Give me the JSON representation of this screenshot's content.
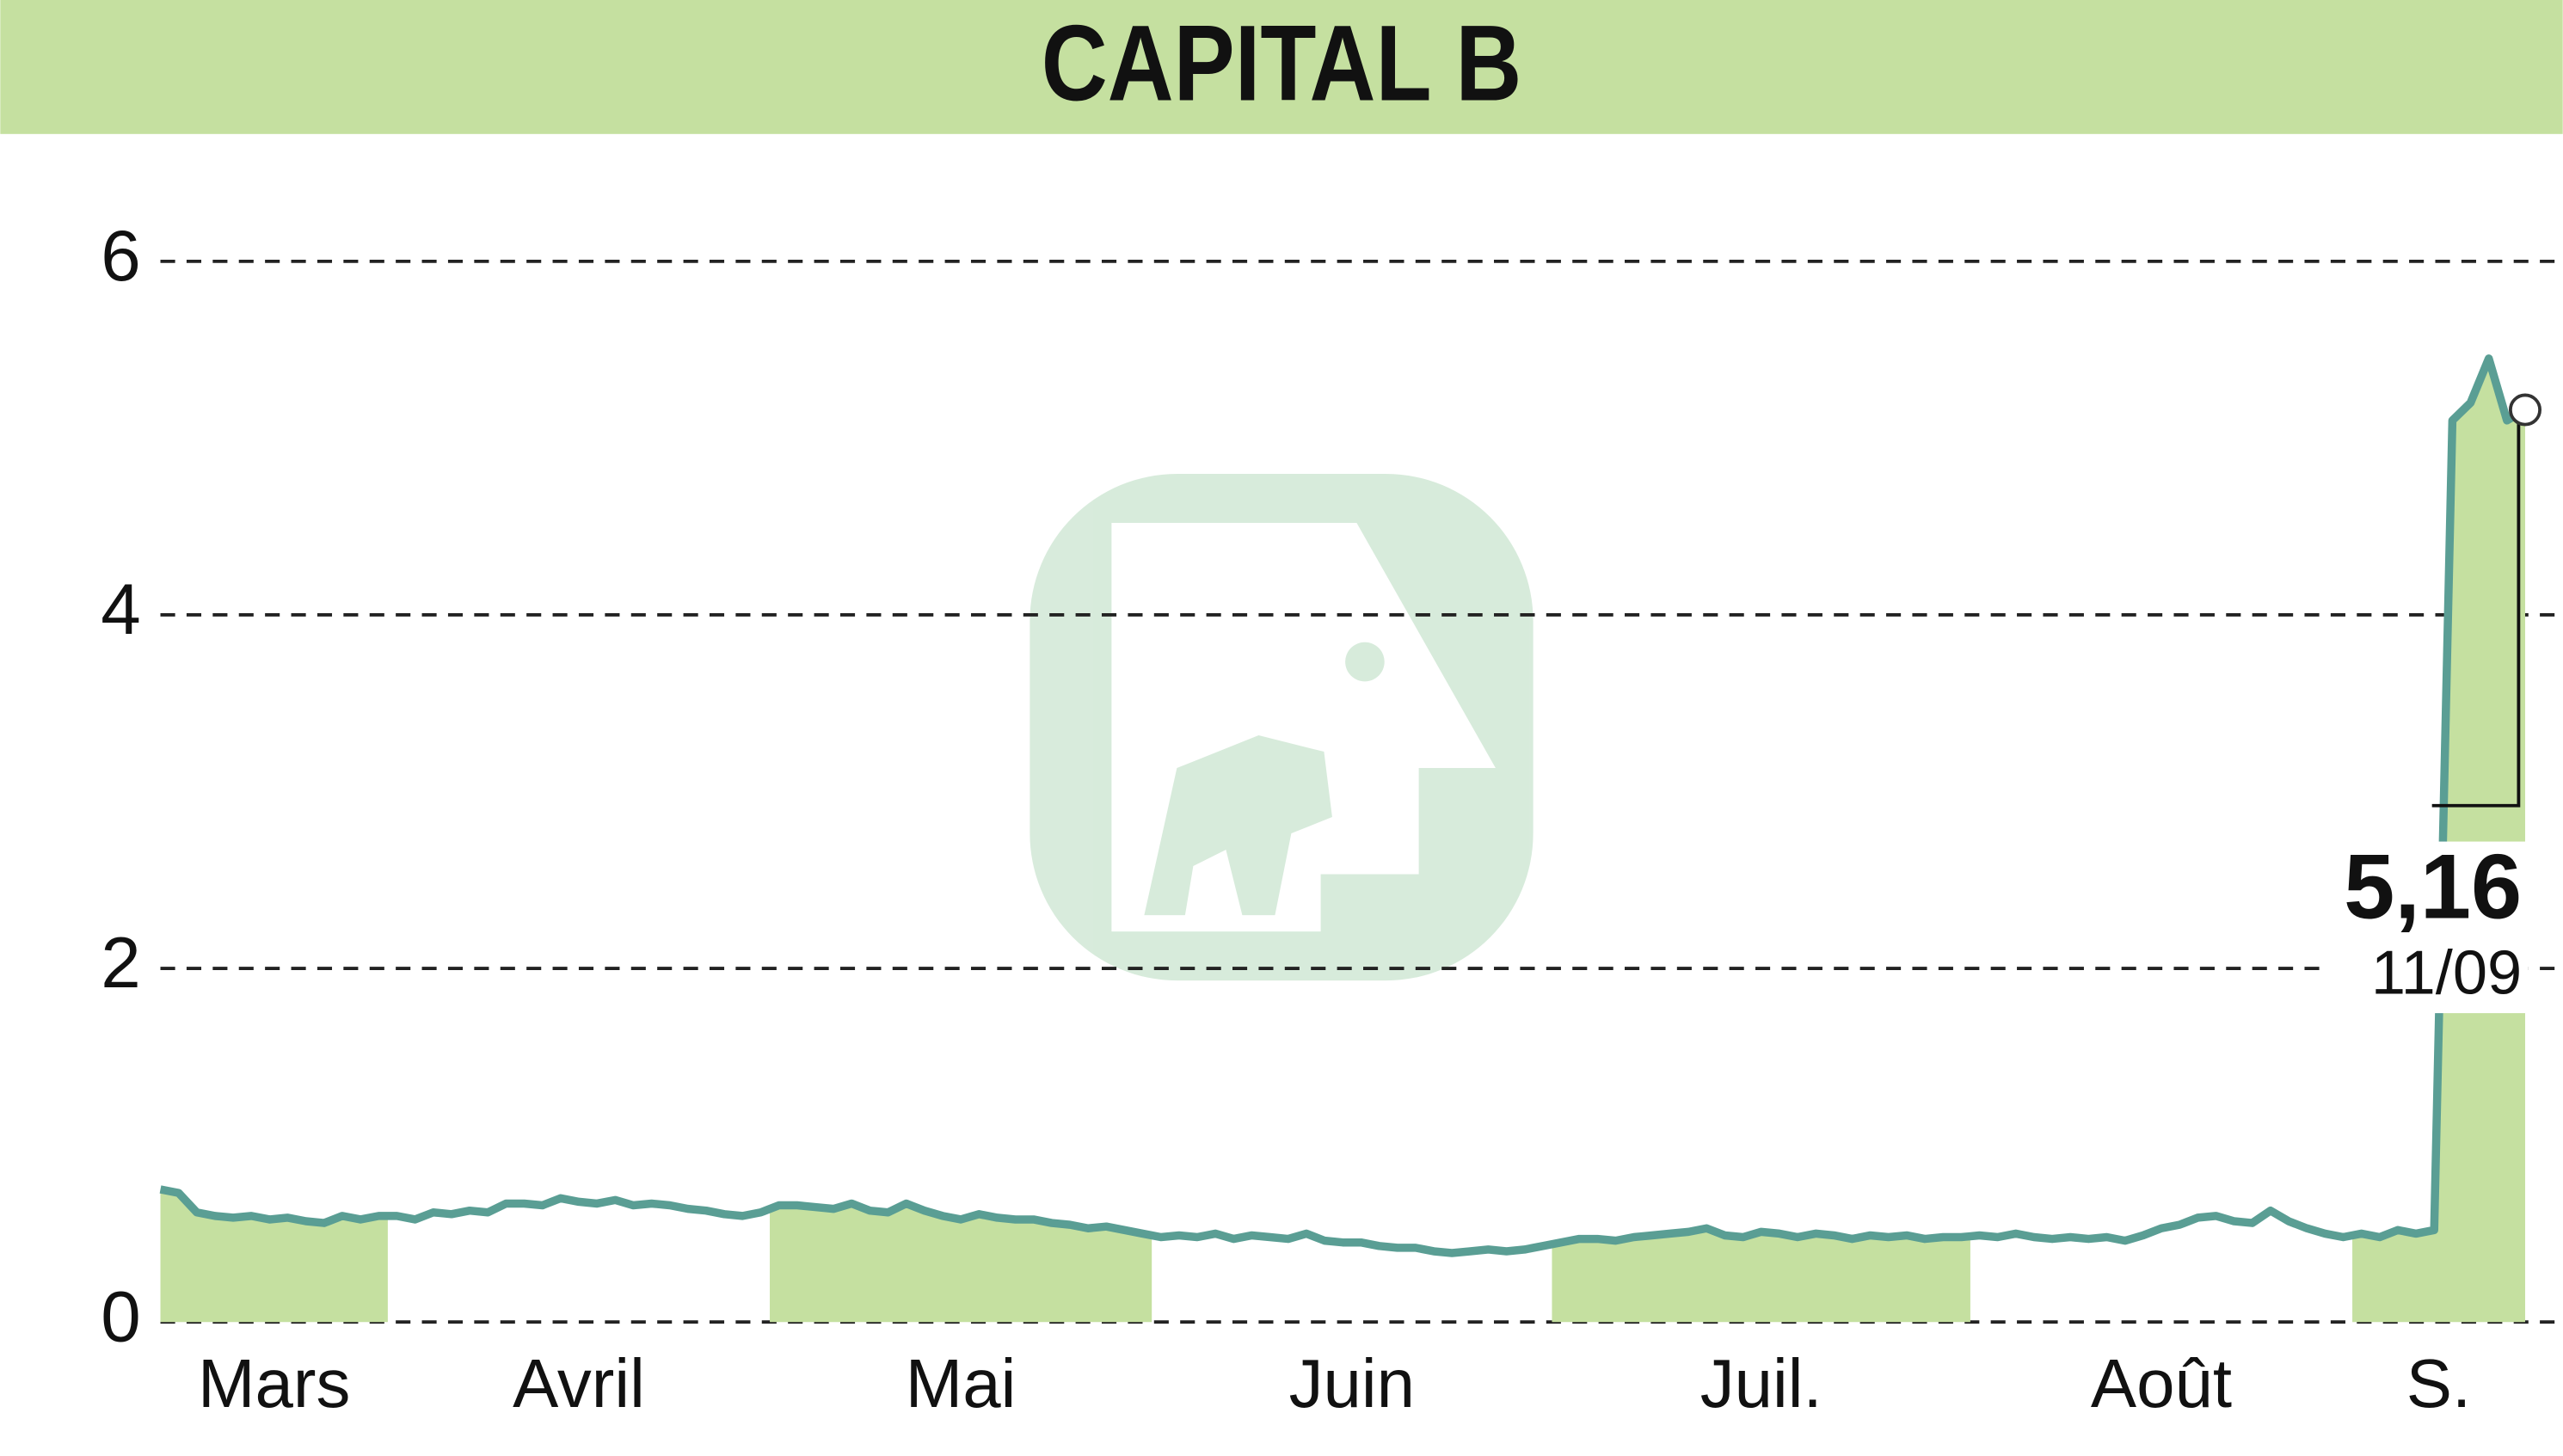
{
  "chart_data": {
    "type": "line",
    "title": "CAPITAL B",
    "months": [
      {
        "label": "Mars",
        "shaded": true,
        "values": [
          0.75,
          0.73,
          0.62,
          0.6,
          0.59,
          0.6,
          0.58,
          0.59,
          0.57,
          0.56,
          0.6,
          0.58,
          0.6
        ]
      },
      {
        "label": "Avril",
        "shaded": false,
        "values": [
          0.6,
          0.58,
          0.62,
          0.61,
          0.63,
          0.62,
          0.67,
          0.67,
          0.66,
          0.7,
          0.68,
          0.67,
          0.69,
          0.66,
          0.67,
          0.66,
          0.64,
          0.63,
          0.61,
          0.6,
          0.62
        ]
      },
      {
        "label": "Mai",
        "shaded": true,
        "values": [
          0.66,
          0.66,
          0.65,
          0.64,
          0.67,
          0.63,
          0.62,
          0.67,
          0.63,
          0.6,
          0.58,
          0.61,
          0.59,
          0.58,
          0.58,
          0.56,
          0.55,
          0.53,
          0.54,
          0.52,
          0.5
        ]
      },
      {
        "label": "Juin",
        "shaded": false,
        "values": [
          0.48,
          0.49,
          0.48,
          0.5,
          0.47,
          0.49,
          0.48,
          0.47,
          0.5,
          0.46,
          0.45,
          0.45,
          0.43,
          0.42,
          0.42,
          0.4,
          0.39,
          0.4,
          0.41,
          0.4,
          0.41,
          0.43
        ]
      },
      {
        "label": "Juil.",
        "shaded": true,
        "values": [
          0.45,
          0.47,
          0.47,
          0.46,
          0.48,
          0.49,
          0.5,
          0.51,
          0.53,
          0.49,
          0.48,
          0.51,
          0.5,
          0.48,
          0.5,
          0.49,
          0.47,
          0.49,
          0.48,
          0.49,
          0.47,
          0.48,
          0.48
        ]
      },
      {
        "label": "Août",
        "shaded": false,
        "values": [
          0.49,
          0.48,
          0.5,
          0.48,
          0.47,
          0.48,
          0.47,
          0.48,
          0.46,
          0.49,
          0.53,
          0.55,
          0.59,
          0.6,
          0.57,
          0.56,
          0.63,
          0.57,
          0.53,
          0.5,
          0.48
        ]
      },
      {
        "label": "S.",
        "shaded": true,
        "values": [
          0.5,
          0.48,
          0.52,
          0.5,
          0.52,
          5.1,
          5.2,
          5.45,
          5.1,
          5.16
        ]
      }
    ],
    "last_value": 5.16,
    "last_value_label": "5,16",
    "last_date": "11/09",
    "line_color": "#5a9e94",
    "fill_color": "#c5e0a0",
    "ylim": [
      0,
      6.6
    ],
    "yticks": [
      0,
      2,
      4,
      6
    ],
    "grid": true
  }
}
